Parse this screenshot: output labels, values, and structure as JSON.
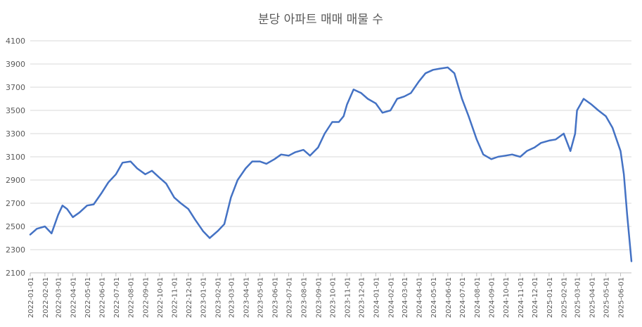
{
  "chart_data": {
    "type": "line",
    "title": "분당 아파트 매매 매물 수",
    "xlabel": "",
    "ylabel": "",
    "ylim": [
      2100,
      4100
    ],
    "yticks": [
      2100,
      2300,
      2500,
      2700,
      2900,
      3100,
      3300,
      3500,
      3700,
      3900,
      4100
    ],
    "xlim": [
      "2022-01-01",
      "2025-06-24"
    ],
    "xticks": [
      "2022-01-01",
      "2022-02-01",
      "2022-03-01",
      "2022-04-01",
      "2022-05-01",
      "2022-06-01",
      "2022-07-01",
      "2022-08-01",
      "2022-09-01",
      "2022-10-01",
      "2022-11-01",
      "2022-12-01",
      "2023-01-01",
      "2023-02-01",
      "2023-03-01",
      "2023-04-01",
      "2023-05-01",
      "2023-06-01",
      "2023-07-01",
      "2023-08-01",
      "2023-09-01",
      "2023-10-01",
      "2023-11-01",
      "2023-12-01",
      "2024-01-01",
      "2024-02-01",
      "2024-03-01",
      "2024-04-01",
      "2024-05-01",
      "2024-06-01",
      "2024-07-01",
      "2024-08-01",
      "2024-09-01",
      "2024-10-01",
      "2024-11-01",
      "2024-12-01",
      "2025-01-01",
      "2025-02-01",
      "2025-03-01",
      "2025-04-01",
      "2025-05-01",
      "2025-06-01"
    ],
    "grid": "horizontal",
    "legend": "none",
    "series_color": "#4472c4",
    "series": [
      {
        "x": [
          "2022-01-01",
          "2022-01-15",
          "2022-02-01",
          "2022-02-15",
          "2022-03-01",
          "2022-03-10",
          "2022-03-20",
          "2022-04-01",
          "2022-04-15",
          "2022-05-01",
          "2022-05-15",
          "2022-06-01",
          "2022-06-15",
          "2022-07-01",
          "2022-07-15",
          "2022-08-01",
          "2022-08-15",
          "2022-09-01",
          "2022-09-15",
          "2022-10-01",
          "2022-10-15",
          "2022-11-01",
          "2022-11-15",
          "2022-12-01",
          "2022-12-15",
          "2023-01-01",
          "2023-01-15",
          "2023-02-01",
          "2023-02-15",
          "2023-03-01",
          "2023-03-15",
          "2023-04-01",
          "2023-04-15",
          "2023-05-01",
          "2023-05-15",
          "2023-06-01",
          "2023-06-15",
          "2023-07-01",
          "2023-07-15",
          "2023-08-01",
          "2023-08-15",
          "2023-09-01",
          "2023-09-15",
          "2023-10-01",
          "2023-10-15",
          "2023-10-25",
          "2023-11-01",
          "2023-11-15",
          "2023-12-01",
          "2023-12-15",
          "2024-01-01",
          "2024-01-15",
          "2024-02-01",
          "2024-02-15",
          "2024-03-01",
          "2024-03-15",
          "2024-04-01",
          "2024-04-15",
          "2024-05-01",
          "2024-05-15",
          "2024-06-01",
          "2024-06-15",
          "2024-07-01",
          "2024-07-15",
          "2024-08-01",
          "2024-08-15",
          "2024-09-01",
          "2024-09-15",
          "2024-10-01",
          "2024-10-15",
          "2024-11-01",
          "2024-11-15",
          "2024-12-01",
          "2024-12-15",
          "2025-01-01",
          "2025-01-15",
          "2025-02-01",
          "2025-02-15",
          "2025-02-25",
          "2025-03-01",
          "2025-03-15",
          "2025-04-01",
          "2025-04-15",
          "2025-05-01",
          "2025-05-15",
          "2025-06-01",
          "2025-06-08",
          "2025-06-15",
          "2025-06-24"
        ],
        "values": [
          2430,
          2480,
          2500,
          2440,
          2600,
          2680,
          2650,
          2580,
          2620,
          2680,
          2690,
          2790,
          2880,
          2950,
          3050,
          3060,
          3000,
          2950,
          2980,
          2920,
          2870,
          2750,
          2700,
          2650,
          2560,
          2460,
          2400,
          2460,
          2520,
          2750,
          2900,
          3000,
          3060,
          3060,
          3040,
          3080,
          3120,
          3110,
          3140,
          3160,
          3110,
          3180,
          3300,
          3400,
          3400,
          3450,
          3550,
          3680,
          3650,
          3600,
          3560,
          3480,
          3500,
          3600,
          3620,
          3650,
          3750,
          3820,
          3850,
          3860,
          3870,
          3820,
          3600,
          3450,
          3250,
          3120,
          3080,
          3100,
          3110,
          3120,
          3100,
          3150,
          3180,
          3220,
          3240,
          3250,
          3300,
          3150,
          3300,
          3500,
          3600,
          3550,
          3500,
          3450,
          3350,
          3150,
          2950,
          2600,
          2200
        ]
      }
    ]
  }
}
